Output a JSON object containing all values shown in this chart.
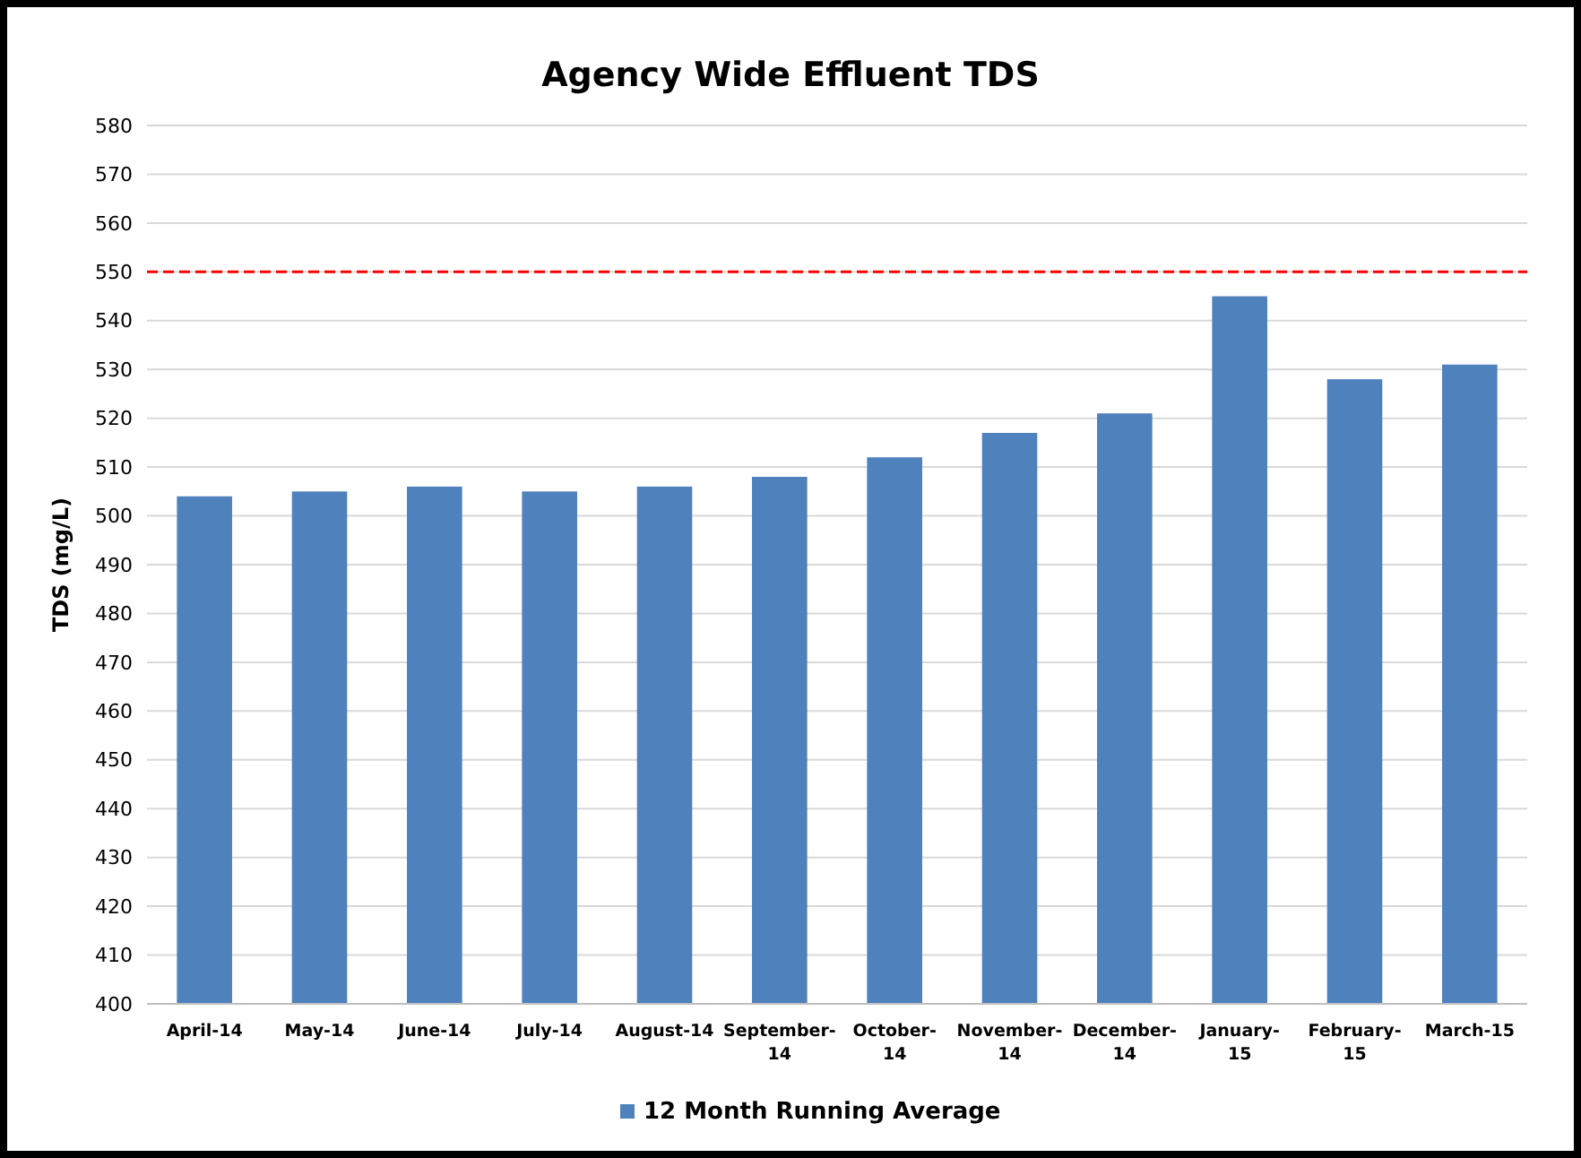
{
  "chart_data": {
    "type": "bar",
    "title": "Agency Wide Effluent TDS",
    "ylabel": "TDS (mg/L)",
    "categories": [
      "April-14",
      "May-14",
      "June-14",
      "July-14",
      "August-14",
      "September-14",
      "October-14",
      "November-14",
      "December-14",
      "January-15",
      "February-15",
      "March-15"
    ],
    "series": [
      {
        "name": "12 Month Running Average",
        "color": "#4f81bd",
        "values": [
          504,
          505,
          506,
          505,
          506,
          508,
          512,
          517,
          521,
          545,
          528,
          531
        ]
      }
    ],
    "ylim": [
      400,
      580
    ],
    "yticks": [
      400,
      410,
      420,
      430,
      440,
      450,
      460,
      470,
      480,
      490,
      500,
      510,
      520,
      530,
      540,
      550,
      560,
      570,
      580
    ],
    "grid": "y",
    "legend": "bottom",
    "ref_lines": [
      {
        "axis": "y",
        "value": 550,
        "color": "#ff0000",
        "line_style": "dashed"
      }
    ]
  }
}
